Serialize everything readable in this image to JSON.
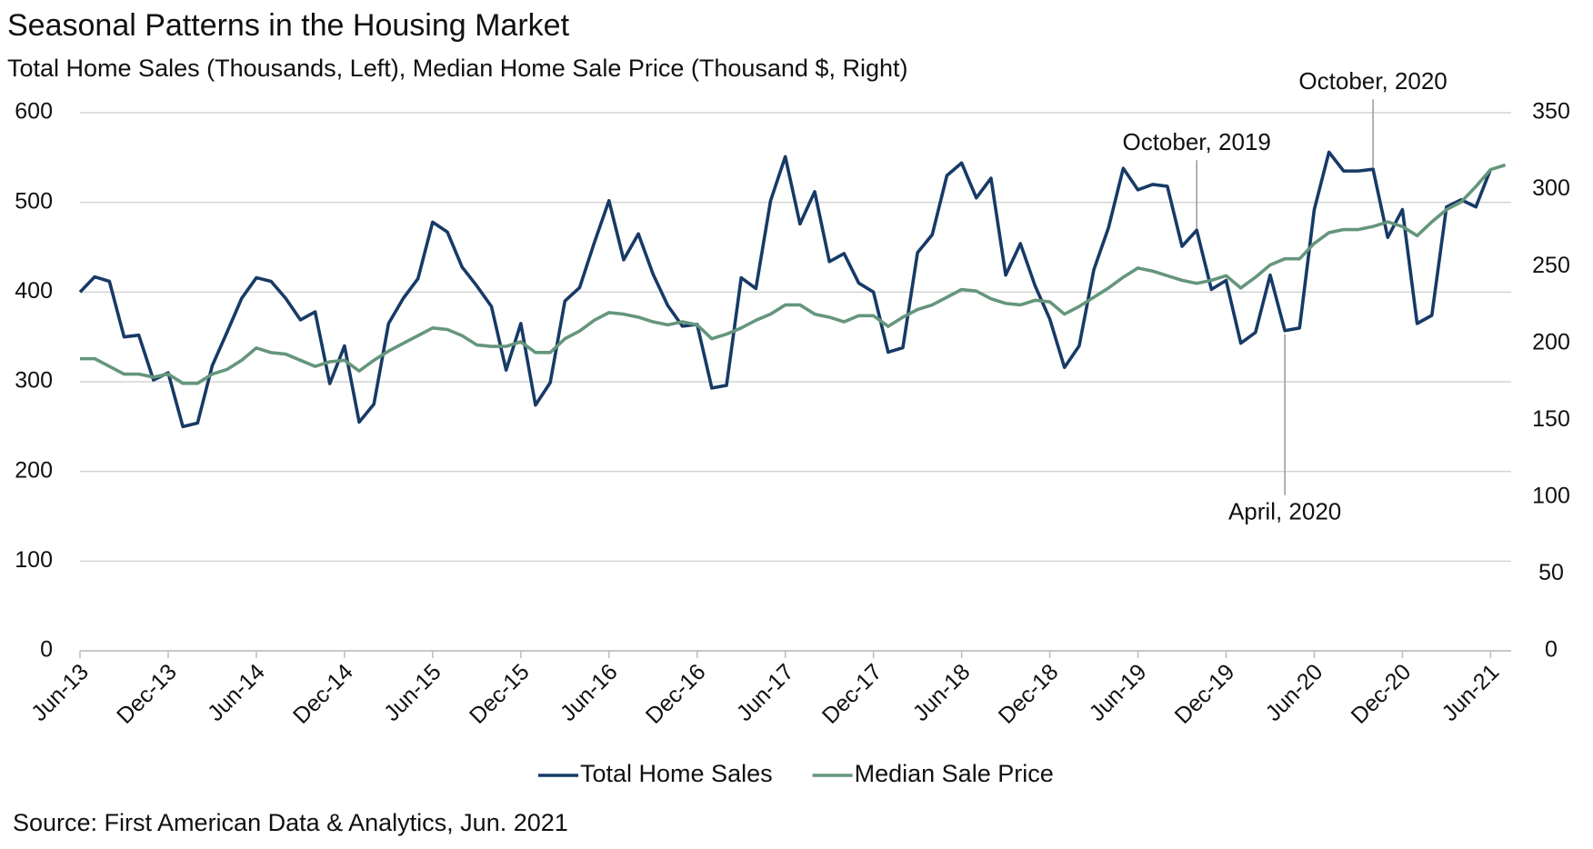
{
  "chart_data": {
    "type": "line",
    "title": "Seasonal Patterns in the Housing Market",
    "subtitle": "Total Home Sales (Thousands, Left), Median Home Sale Price (Thousand $, Right)",
    "source": "Source: First American Data & Analytics, Jun. 2021",
    "categories": [
      "Jun-13",
      null,
      null,
      null,
      null,
      null,
      "Dec-13",
      null,
      null,
      null,
      null,
      null,
      "Jun-14",
      null,
      null,
      null,
      null,
      null,
      "Dec-14",
      null,
      null,
      null,
      null,
      null,
      "Jun-15",
      null,
      null,
      null,
      null,
      null,
      "Dec-15",
      null,
      null,
      null,
      null,
      null,
      "Jun-16",
      null,
      null,
      null,
      null,
      null,
      "Dec-16",
      null,
      null,
      null,
      null,
      null,
      "Jun-17",
      null,
      null,
      null,
      null,
      null,
      "Dec-17",
      null,
      null,
      null,
      null,
      null,
      "Jun-18",
      null,
      null,
      null,
      null,
      null,
      "Dec-18",
      null,
      null,
      null,
      null,
      null,
      "Jun-19",
      null,
      null,
      null,
      null,
      null,
      "Dec-19",
      null,
      null,
      null,
      null,
      null,
      "Jun-20",
      null,
      null,
      null,
      null,
      null,
      "Dec-20",
      null,
      null,
      null,
      null,
      null,
      "Jun-21",
      null
    ],
    "series": [
      {
        "name": "Total Home Sales",
        "color": "#173a66",
        "axis": "y",
        "values": [
          400,
          417,
          412,
          350,
          352,
          302,
          310,
          250,
          254,
          318,
          355,
          393,
          416,
          412,
          393,
          369,
          378,
          298,
          340,
          255,
          275,
          365,
          393,
          415,
          478,
          467,
          428,
          407,
          384,
          313,
          365,
          274,
          299,
          390,
          405,
          455,
          502,
          436,
          465,
          420,
          385,
          362,
          364,
          293,
          296,
          416,
          404,
          502,
          551,
          476,
          512,
          434,
          443,
          410,
          400,
          333,
          338,
          444,
          464,
          530,
          544,
          505,
          527,
          419,
          454,
          407,
          370,
          316,
          340,
          425,
          472,
          538,
          514,
          520,
          518,
          451,
          469,
          403,
          413,
          343,
          355,
          419,
          357,
          360,
          492,
          556,
          535,
          535,
          537,
          461,
          492,
          365,
          374,
          495,
          503,
          495,
          537,
          null
        ]
      },
      {
        "name": "Median Sale Price",
        "color": "#65967c",
        "axis": "y2",
        "values": [
          190,
          190,
          185,
          180,
          180,
          178,
          180,
          174,
          174,
          180,
          183,
          189,
          197,
          194,
          193,
          189,
          185,
          188,
          189,
          182,
          189,
          195,
          200,
          205,
          210,
          209,
          205,
          199,
          198,
          198,
          201,
          194,
          194,
          203,
          208,
          215,
          220,
          219,
          217,
          214,
          212,
          214,
          212,
          203,
          206,
          210,
          215,
          219,
          225,
          225,
          219,
          217,
          214,
          218,
          218,
          211,
          217,
          222,
          225,
          230,
          235,
          234,
          229,
          226,
          225,
          228,
          227,
          219,
          224,
          230,
          236,
          243,
          249,
          247,
          244,
          241,
          239,
          241,
          244,
          236,
          243,
          251,
          255,
          255,
          265,
          272,
          274,
          274,
          276,
          279,
          276,
          270,
          279,
          287,
          292,
          302,
          313,
          316
        ]
      }
    ],
    "ylim": [
      0,
      600
    ],
    "yticks": [
      0,
      100,
      200,
      300,
      400,
      500,
      600
    ],
    "y2lim": [
      0,
      350
    ],
    "y2ticks": [
      0,
      50,
      100,
      150,
      200,
      250,
      300,
      350
    ],
    "grid": true,
    "legend": "bottom",
    "annotations": [
      {
        "text": "October, 2019",
        "position": "above"
      },
      {
        "text": "October, 2020",
        "position": "above"
      },
      {
        "text": "April, 2020",
        "position": "below"
      }
    ]
  }
}
